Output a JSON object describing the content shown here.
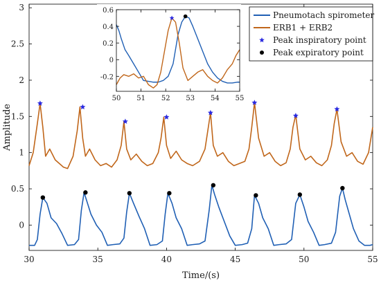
{
  "chart_data": [
    {
      "type": "line",
      "title": "",
      "xlabel": "Time/(s)",
      "ylabel": "Amplitude",
      "xlim": [
        30,
        55
      ],
      "ylim": [
        -0.35,
        3.05
      ],
      "xticks": [
        30,
        35,
        40,
        45,
        50,
        55
      ],
      "yticks": [
        0,
        0.5,
        1,
        1.5,
        2,
        2.5,
        3
      ],
      "grid": false,
      "legend_position": "top-right",
      "legend": [
        {
          "label": "Pneumotach spirometer",
          "color": "#1f5fb4",
          "marker": "line"
        },
        {
          "label": "ERB1 + ERB2",
          "color": "#c0661a",
          "marker": "line"
        },
        {
          "label": "Peak inspiratory point",
          "color": "#2a2adf",
          "marker": "star"
        },
        {
          "label": "Peak expiratory point",
          "color": "#000000",
          "marker": "dot"
        }
      ],
      "series": [
        {
          "name": "Pneumotach spirometer",
          "color": "#1f5fb4",
          "x": [
            30,
            30.4,
            30.6,
            30.8,
            31.0,
            31.3,
            31.6,
            32.0,
            32.4,
            32.8,
            33.3,
            33.6,
            33.8,
            34.0,
            34.2,
            34.5,
            34.9,
            35.3,
            35.7,
            36.1,
            36.6,
            36.9,
            37.1,
            37.3,
            37.6,
            38.0,
            38.4,
            38.8,
            39.3,
            39.7,
            39.9,
            40.1,
            40.4,
            40.7,
            41.1,
            41.5,
            41.9,
            42.4,
            42.8,
            43.1,
            43.3,
            43.5,
            43.8,
            44.2,
            44.6,
            45.0,
            45.5,
            45.9,
            46.2,
            46.4,
            46.7,
            47.0,
            47.4,
            47.8,
            48.2,
            48.7,
            49.1,
            49.4,
            49.7,
            50.0,
            50.3,
            50.7,
            51.1,
            51.5,
            52.0,
            52.3,
            52.6,
            52.8,
            53.0,
            53.3,
            53.6,
            54.0,
            54.4,
            54.8,
            55.0
          ],
          "y": [
            -0.28,
            -0.28,
            -0.2,
            0.15,
            0.38,
            0.3,
            0.1,
            0.02,
            -0.12,
            -0.28,
            -0.27,
            -0.2,
            0.2,
            0.45,
            0.33,
            0.15,
            0.0,
            -0.1,
            -0.28,
            -0.27,
            -0.26,
            -0.18,
            0.18,
            0.44,
            0.3,
            0.12,
            -0.05,
            -0.28,
            -0.27,
            -0.22,
            0.15,
            0.44,
            0.3,
            0.1,
            -0.05,
            -0.28,
            -0.27,
            -0.26,
            -0.22,
            0.2,
            0.55,
            0.42,
            0.25,
            0.05,
            -0.15,
            -0.28,
            -0.27,
            -0.25,
            -0.05,
            0.41,
            0.3,
            0.1,
            -0.05,
            -0.28,
            -0.27,
            -0.26,
            -0.2,
            0.3,
            0.42,
            0.25,
            0.05,
            -0.1,
            -0.28,
            -0.27,
            -0.25,
            -0.1,
            0.4,
            0.51,
            0.35,
            0.15,
            -0.05,
            -0.22,
            -0.28,
            -0.28,
            -0.27
          ]
        },
        {
          "name": "ERB1 + ERB2",
          "color": "#c0661a",
          "x": [
            30,
            30.3,
            30.6,
            30.8,
            31.0,
            31.2,
            31.5,
            31.9,
            32.2,
            32.5,
            32.8,
            33.2,
            33.5,
            33.7,
            33.9,
            34.1,
            34.4,
            34.8,
            35.2,
            35.6,
            36.0,
            36.4,
            36.7,
            36.9,
            37.1,
            37.4,
            37.8,
            38.2,
            38.6,
            39.0,
            39.4,
            39.6,
            39.8,
            40.0,
            40.3,
            40.7,
            41.1,
            41.5,
            41.9,
            42.4,
            42.8,
            43.0,
            43.2,
            43.4,
            43.7,
            44.1,
            44.5,
            44.9,
            45.3,
            45.7,
            46.0,
            46.2,
            46.4,
            46.7,
            47.1,
            47.5,
            47.9,
            48.3,
            48.7,
            49.0,
            49.2,
            49.4,
            49.7,
            50.1,
            50.5,
            50.9,
            51.3,
            51.7,
            52.0,
            52.2,
            52.4,
            52.7,
            53.1,
            53.5,
            53.9,
            54.3,
            54.7,
            55.0
          ],
          "y": [
            0.82,
            1.0,
            1.4,
            1.68,
            1.35,
            0.95,
            1.05,
            0.9,
            0.85,
            0.8,
            0.78,
            0.95,
            1.3,
            1.63,
            1.2,
            0.95,
            1.05,
            0.9,
            0.82,
            0.85,
            0.8,
            0.9,
            1.1,
            1.43,
            1.05,
            0.9,
            0.98,
            0.88,
            0.82,
            0.85,
            1.0,
            1.2,
            1.49,
            1.1,
            0.92,
            1.02,
            0.9,
            0.85,
            0.82,
            0.88,
            1.05,
            1.3,
            1.55,
            1.1,
            0.95,
            1.0,
            0.88,
            0.82,
            0.85,
            0.88,
            1.05,
            1.35,
            1.69,
            1.2,
            0.95,
            1.0,
            0.88,
            0.82,
            0.86,
            1.05,
            1.35,
            1.52,
            1.05,
            0.9,
            0.95,
            0.86,
            0.82,
            0.9,
            1.1,
            1.4,
            1.6,
            1.15,
            0.95,
            1.0,
            0.88,
            0.84,
            1.0,
            1.35
          ]
        }
      ],
      "inspiratory_peaks": {
        "x": [
          30.8,
          33.9,
          37.0,
          40.0,
          43.2,
          46.4,
          49.4,
          52.4
        ],
        "y": [
          1.68,
          1.63,
          1.43,
          1.49,
          1.55,
          1.69,
          1.51,
          1.6
        ]
      },
      "expiratory_peaks": {
        "x": [
          31.0,
          34.1,
          37.3,
          40.2,
          43.4,
          46.5,
          49.7,
          52.8
        ],
        "y": [
          0.38,
          0.45,
          0.44,
          0.44,
          0.55,
          0.41,
          0.42,
          0.51
        ]
      }
    },
    {
      "type": "line",
      "title": "",
      "xlim": [
        50,
        55
      ],
      "ylim": [
        -0.38,
        0.6
      ],
      "xticks": [
        50,
        51,
        52,
        53,
        54,
        55
      ],
      "yticks": [
        -0.2,
        0,
        0.2,
        0.4,
        0.6
      ],
      "yticklabels": [
        "-0.2",
        "0",
        "0.2",
        "0.4",
        "0.6"
      ],
      "grid": false,
      "series": [
        {
          "name": "Pneumotach spirometer",
          "color": "#1f5fb4",
          "x": [
            50.0,
            50.1,
            50.2,
            50.35,
            50.5,
            50.7,
            50.9,
            51.1,
            51.3,
            51.5,
            51.7,
            51.9,
            52.1,
            52.3,
            52.5,
            52.65,
            52.8,
            52.95,
            53.1,
            53.3,
            53.5,
            53.7,
            53.9,
            54.1,
            54.3,
            54.5,
            54.7,
            54.9,
            55.0
          ],
          "y": [
            0.42,
            0.35,
            0.25,
            0.12,
            0.05,
            -0.05,
            -0.15,
            -0.25,
            -0.26,
            -0.27,
            -0.27,
            -0.25,
            -0.2,
            -0.05,
            0.3,
            0.45,
            0.52,
            0.5,
            0.4,
            0.25,
            0.1,
            -0.05,
            -0.15,
            -0.22,
            -0.26,
            -0.28,
            -0.28,
            -0.27,
            -0.27
          ]
        },
        {
          "name": "ERB1 + ERB2",
          "color": "#c0661a",
          "x": [
            50.0,
            50.15,
            50.3,
            50.5,
            50.7,
            50.9,
            51.1,
            51.3,
            51.5,
            51.65,
            51.8,
            51.95,
            52.1,
            52.25,
            52.4,
            52.55,
            52.7,
            52.9,
            53.1,
            53.3,
            53.5,
            53.7,
            53.9,
            54.1,
            54.3,
            54.5,
            54.7,
            54.85,
            55.0
          ],
          "y": [
            -0.3,
            -0.22,
            -0.18,
            -0.2,
            -0.17,
            -0.22,
            -0.2,
            -0.3,
            -0.34,
            -0.3,
            -0.15,
            0.1,
            0.35,
            0.5,
            0.45,
            0.2,
            -0.1,
            -0.25,
            -0.2,
            -0.15,
            -0.12,
            -0.2,
            -0.25,
            -0.28,
            -0.22,
            -0.12,
            -0.05,
            0.05,
            0.12
          ]
        }
      ],
      "inspiratory_peaks": {
        "x": [
          52.25
        ],
        "y": [
          0.5
        ]
      },
      "expiratory_peaks": {
        "x": [
          52.8
        ],
        "y": [
          0.52
        ]
      }
    }
  ]
}
